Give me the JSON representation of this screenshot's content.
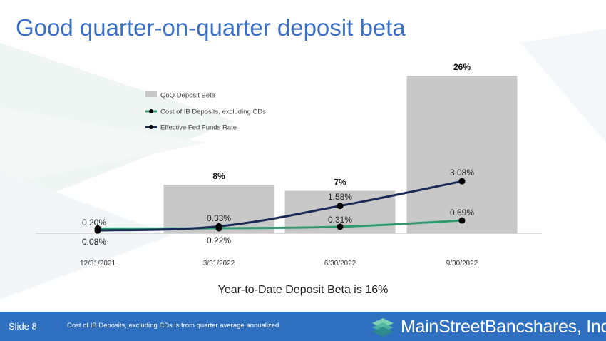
{
  "slide": {
    "title": "Good quarter-on-quarter deposit beta",
    "subtitle": "Year-to-Date Deposit Beta is 16%",
    "slide_number": "Slide 8",
    "footnote": "Cost of IB Deposits, excluding CDs is from quarter average annualized",
    "logo_text": "MainStreetBancshares, Inc."
  },
  "colors": {
    "title": "#3a6fc4",
    "bars": "#c8c8c8",
    "cost_line": "#2e9b6e",
    "fed_line": "#1b2a55",
    "footer": "#2f6fc0"
  },
  "chart_data": {
    "type": "bar",
    "categories": [
      "12/31/2021",
      "3/31/2022",
      "6/30/2022",
      "9/30/2022"
    ],
    "bar_series": {
      "name": "QoQ Deposit Beta",
      "values": [
        null,
        8,
        7,
        26
      ],
      "labels": [
        "",
        "8%",
        "7%",
        "26%"
      ]
    },
    "line_series": [
      {
        "name": "Cost of IB Deposits, excluding CDs",
        "values": [
          0.2,
          0.22,
          0.31,
          0.69
        ],
        "labels": [
          "0.20%",
          "0.22%",
          "0.31%",
          "0.69%"
        ],
        "color": "#2e9b6e"
      },
      {
        "name": "Effective Fed Funds Rate",
        "values": [
          0.08,
          0.33,
          1.58,
          3.08
        ],
        "labels": [
          "0.08%",
          "0.33%",
          "1.58%",
          "3.08%"
        ],
        "color": "#1b2a55"
      }
    ],
    "legend": [
      "QoQ Deposit Beta",
      "Cost of IB Deposits, excluding CDs",
      "Effective Fed Funds Rate"
    ],
    "legend_position": "top-left",
    "grid": false
  }
}
